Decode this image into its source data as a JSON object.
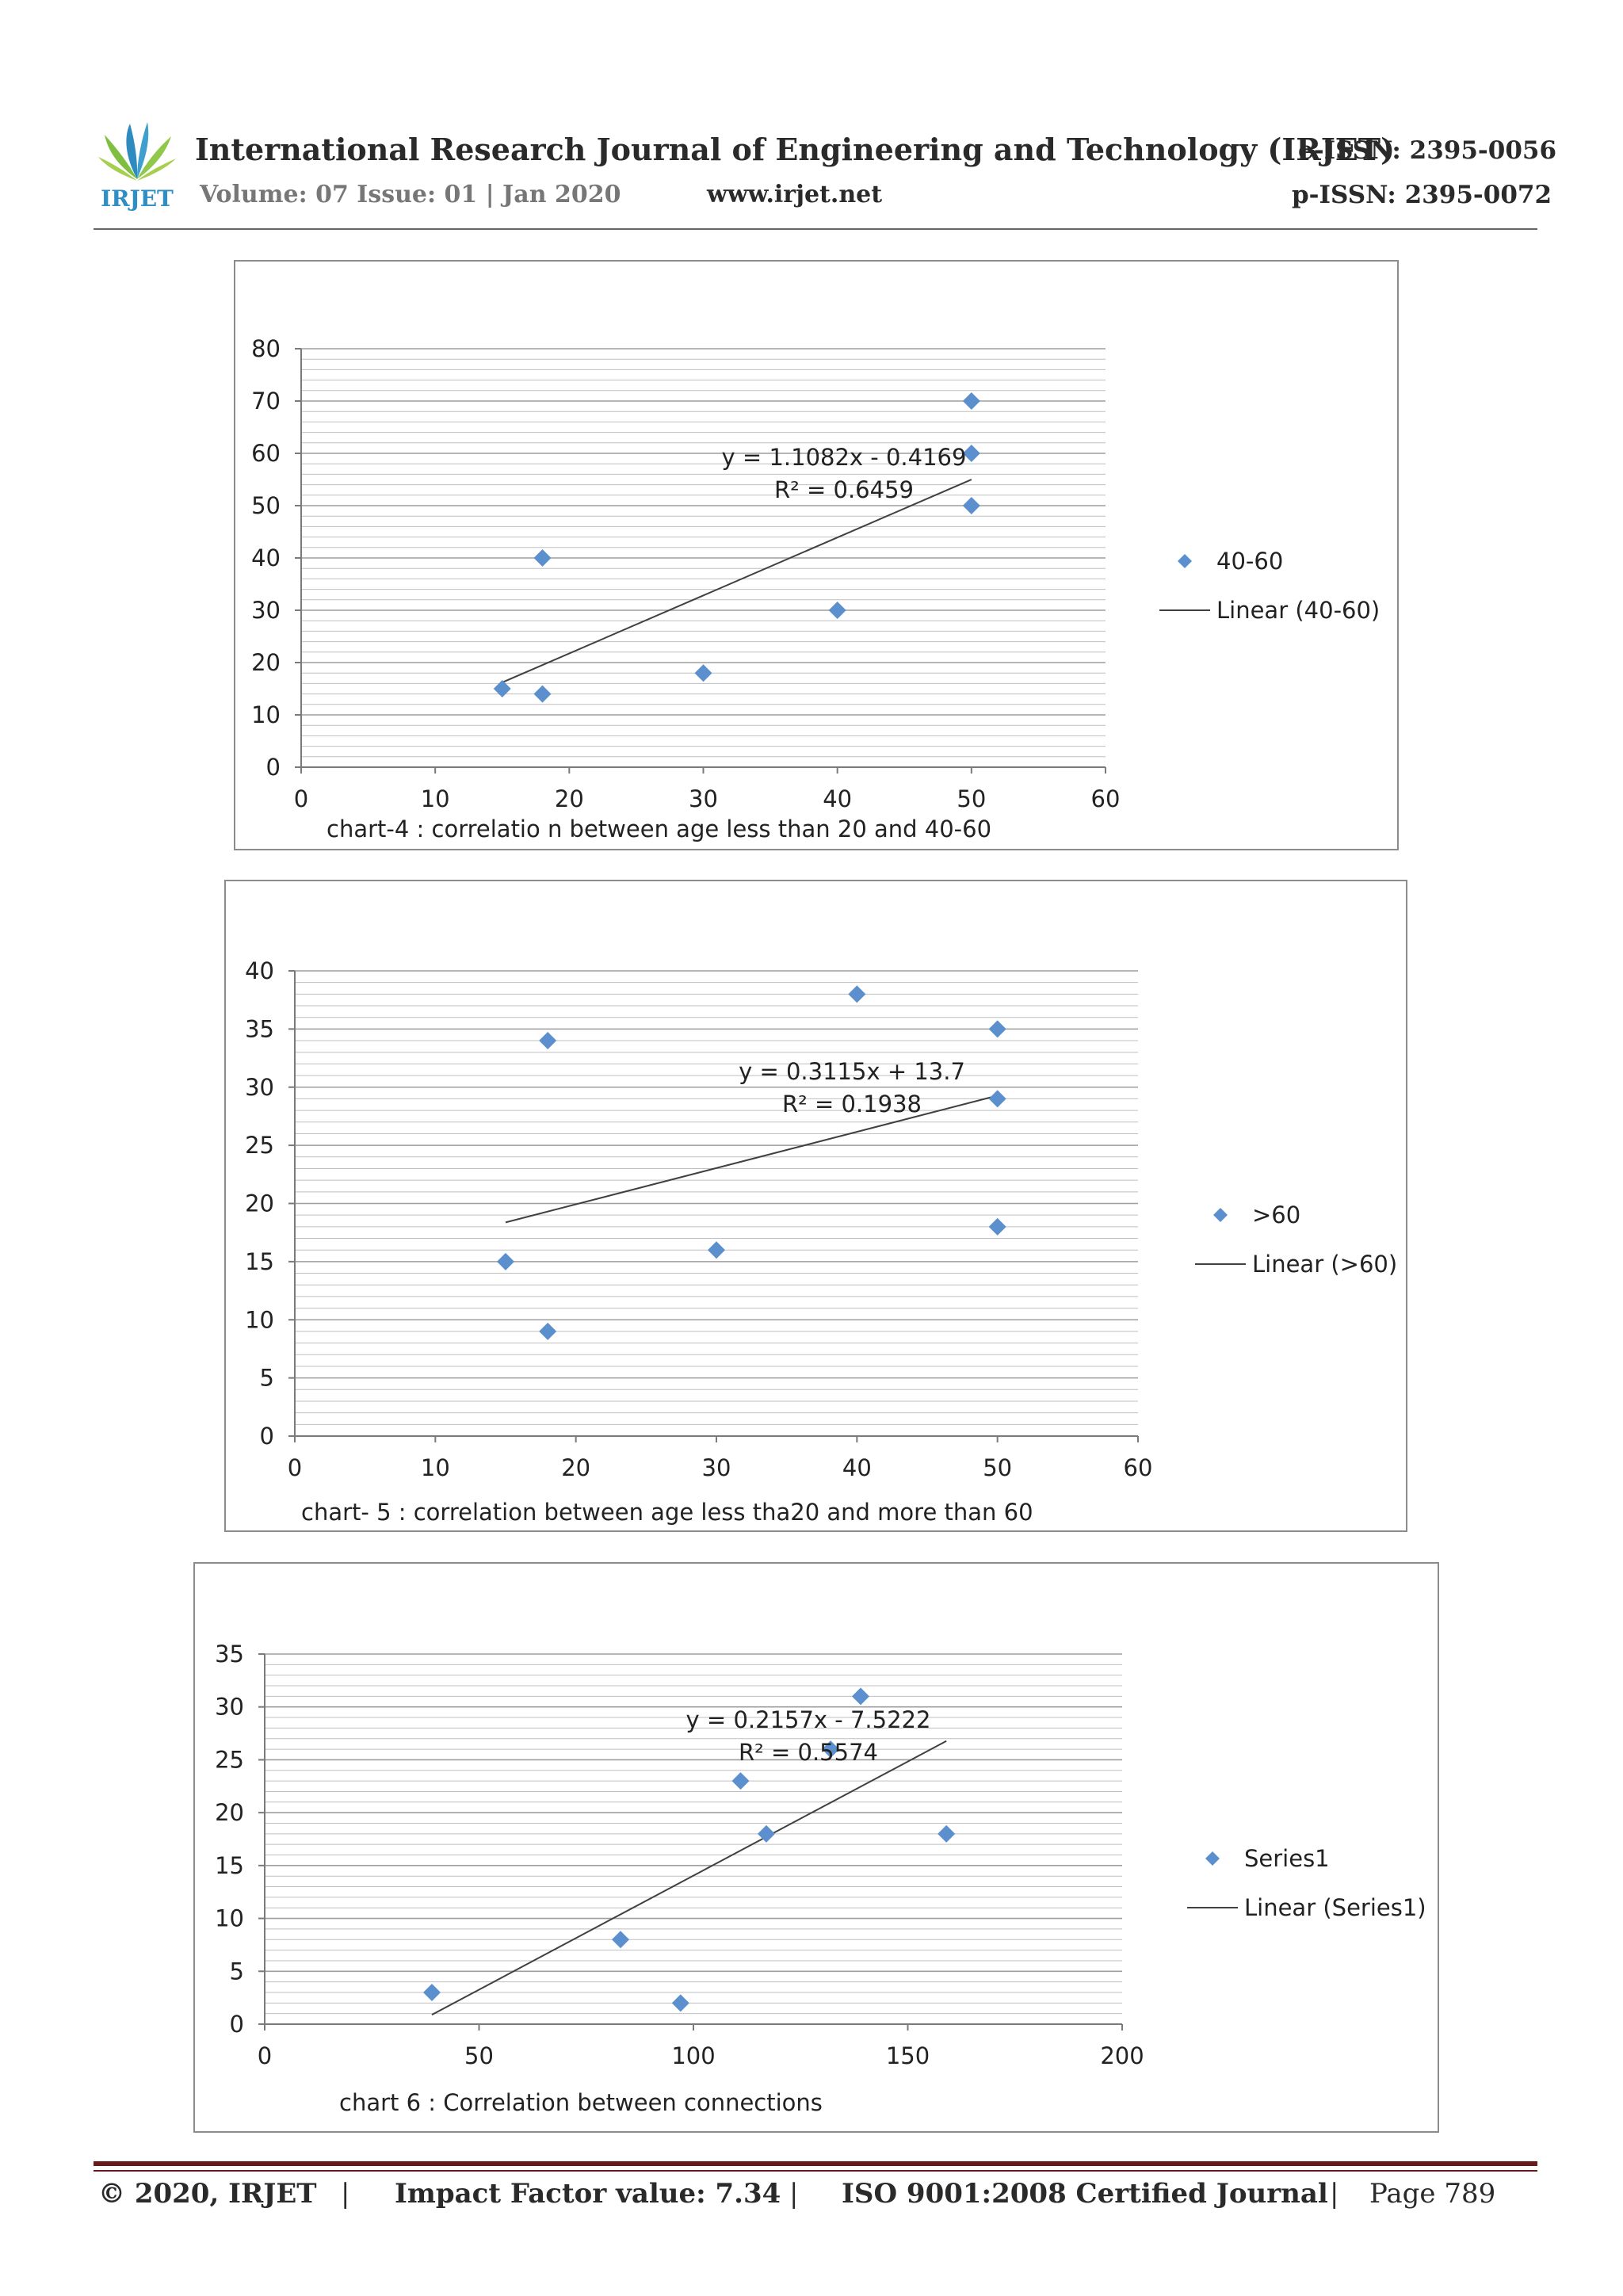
{
  "header": {
    "logo_text": "IRJET",
    "journal_title": "International Research Journal of Engineering and Technology (IRJET)",
    "eissn": "e-ISSN: 2395-0056",
    "volume": "Volume: 07 Issue: 01 | Jan 2020",
    "website": "www.irjet.net",
    "pissn": "p-ISSN: 2395-0072"
  },
  "footer": {
    "copyright": "© 2020, IRJET",
    "separator": "|",
    "impact": "Impact Factor value: 7.34",
    "iso": "ISO 9001:2008 Certified Journal",
    "page": "Page 789"
  },
  "colors": {
    "marker": "#5b8fcd",
    "trendline": "#404040",
    "gridline": "#bfbfbf"
  },
  "chart_data": [
    {
      "type": "scatter",
      "caption": "chart-4 : correlatio n between age less than 20 and 40-60",
      "xlim": [
        0,
        60
      ],
      "ylim": [
        0,
        80
      ],
      "xticks": [
        0,
        10,
        20,
        30,
        40,
        50,
        60
      ],
      "yticks": [
        0,
        10,
        20,
        30,
        40,
        50,
        60,
        70,
        80
      ],
      "series": [
        {
          "name": "40-60",
          "points": [
            [
              15,
              15
            ],
            [
              18,
              40
            ],
            [
              18,
              14
            ],
            [
              30,
              18
            ],
            [
              40,
              30
            ],
            [
              50,
              70
            ],
            [
              50,
              60
            ],
            [
              50,
              50
            ]
          ]
        }
      ],
      "trendline": {
        "name": "Linear (40-60)",
        "x_range": [
          15,
          50
        ],
        "equation": "y = 1.1082x - 0.4169",
        "r2": "R² = 0.6459"
      },
      "legend": "right"
    },
    {
      "type": "scatter",
      "caption": "chart- 5 : correlation between age less tha20 and more than 60",
      "xlim": [
        0,
        60
      ],
      "ylim": [
        0,
        40
      ],
      "xticks": [
        0,
        10,
        20,
        30,
        40,
        50,
        60
      ],
      "yticks": [
        0,
        5,
        10,
        15,
        20,
        25,
        30,
        35,
        40
      ],
      "series": [
        {
          "name": ">60",
          "points": [
            [
              15,
              15
            ],
            [
              18,
              34
            ],
            [
              18,
              9
            ],
            [
              30,
              16
            ],
            [
              40,
              38
            ],
            [
              50,
              35
            ],
            [
              50,
              29
            ],
            [
              50,
              18
            ]
          ]
        }
      ],
      "trendline": {
        "name": "Linear (>60)",
        "x_range": [
          15,
          50
        ],
        "equation": "y = 0.3115x + 13.7",
        "r2": "R² = 0.1938"
      },
      "legend": "right"
    },
    {
      "type": "scatter",
      "caption": "chart 6 : Correlation between connections",
      "xlim": [
        0,
        200
      ],
      "ylim": [
        0,
        35
      ],
      "xticks": [
        0,
        50,
        100,
        150,
        200
      ],
      "yticks": [
        0,
        5,
        10,
        15,
        20,
        25,
        30,
        35
      ],
      "series": [
        {
          "name": "Series1",
          "points": [
            [
              39,
              3
            ],
            [
              83,
              8
            ],
            [
              97,
              2
            ],
            [
              111,
              23
            ],
            [
              117,
              18
            ],
            [
              132,
              26
            ],
            [
              139,
              31
            ],
            [
              159,
              18
            ]
          ]
        }
      ],
      "trendline": {
        "name": "Linear (Series1)",
        "x_range": [
          39,
          159
        ],
        "equation": "y = 0.2157x - 7.5222",
        "r2": "R² = 0.5574"
      },
      "legend": "right"
    }
  ]
}
